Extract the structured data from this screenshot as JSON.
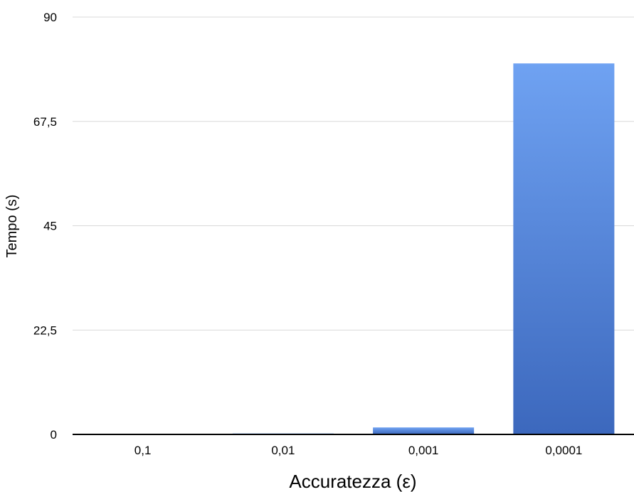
{
  "chart_data": {
    "type": "bar",
    "title": "",
    "xlabel": "Accuratezza (ε)",
    "ylabel": "Tempo (s)",
    "categories": [
      "0,1",
      "0,01",
      "0,001",
      "0,0001"
    ],
    "values": [
      0.05,
      0.2,
      1.5,
      80
    ],
    "ylim": [
      0,
      90
    ],
    "yticks": [
      0,
      22.5,
      45,
      67.5,
      90
    ],
    "ytick_labels": [
      "0",
      "22,5",
      "45",
      "67,5",
      "90"
    ],
    "grid": true,
    "legend": "none",
    "colors": {
      "bar_top": "#6fa2f2",
      "bar_bottom": "#3c68bd",
      "grid": "#d9d9d9",
      "axis": "#000000",
      "text": "#000000"
    }
  }
}
